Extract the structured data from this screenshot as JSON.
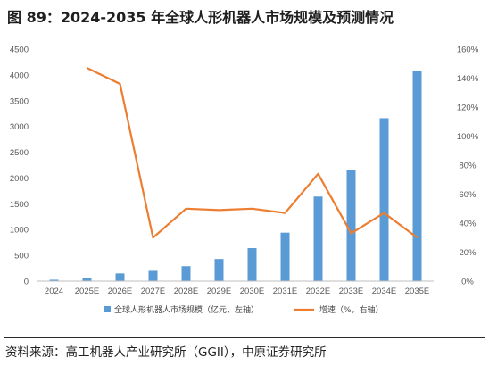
{
  "header": {
    "title": "图 89：2024-2035 年全球人形机器人市场规模及预测情况"
  },
  "footer": {
    "source": "资料来源：高工机器人产业研究所（GGII），中原证券研究所"
  },
  "colors": {
    "bar": "#5b9bd5",
    "line": "#ed7d31",
    "grid": "#d9d9d9",
    "axis": "#bfbfbf"
  },
  "chart_data": {
    "type": "bar",
    "categories": [
      "2024",
      "2025E",
      "2026E",
      "2027E",
      "2028E",
      "2029E",
      "2030E",
      "2031E",
      "2032E",
      "2033E",
      "2034E",
      "2035E"
    ],
    "series": [
      {
        "name": "全球人形机器人市场规模（亿元，左轴）",
        "type": "bar",
        "axis": "left",
        "values": [
          27,
          62,
          150,
          200,
          290,
          430,
          640,
          940,
          1640,
          2160,
          3160,
          4080
        ]
      },
      {
        "name": "增速（%，右轴）",
        "type": "line",
        "axis": "right",
        "values": [
          null,
          1.47,
          1.36,
          0.3,
          0.5,
          0.49,
          0.5,
          0.47,
          0.74,
          0.33,
          0.47,
          0.3
        ]
      }
    ],
    "y_left": {
      "min": 0,
      "max": 4500,
      "ticks": [
        "0",
        "500",
        "1000",
        "1500",
        "2000",
        "2500",
        "3000",
        "3500",
        "4000",
        "4500"
      ]
    },
    "y_right": {
      "min": 0,
      "max": 1.6,
      "ticks": [
        "0%",
        "20%",
        "40%",
        "60%",
        "80%",
        "100%",
        "120%",
        "140%",
        "160%"
      ]
    },
    "legend_position": "bottom",
    "grid": false
  }
}
